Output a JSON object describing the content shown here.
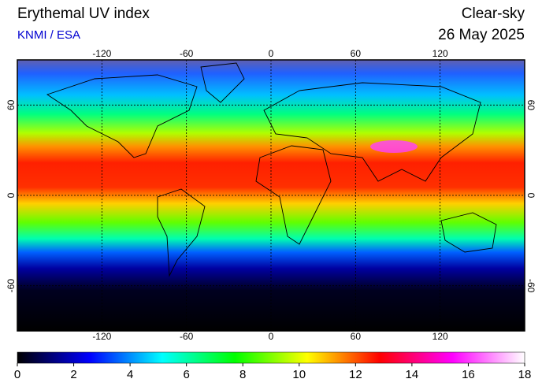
{
  "chart_data": {
    "type": "map",
    "title": "Erythemal UV index",
    "subtitle": "KNMI / ESA",
    "mode": "Clear-sky",
    "date": "26 May 2025",
    "xlim": [
      -180,
      180
    ],
    "ylim": [
      -90,
      90
    ],
    "xticks": [
      -120,
      -60,
      0,
      60,
      120
    ],
    "yticks": [
      -60,
      0,
      60
    ],
    "grid": true,
    "clim": [
      0,
      18
    ],
    "cticks": [
      0,
      2,
      4,
      6,
      8,
      10,
      12,
      14,
      16,
      18
    ],
    "colormap": [
      "#000000",
      "#0000ff",
      "#00ffff",
      "#00ff00",
      "#ffff00",
      "#ff0000",
      "#ff00ff",
      "#ffffff"
    ]
  }
}
